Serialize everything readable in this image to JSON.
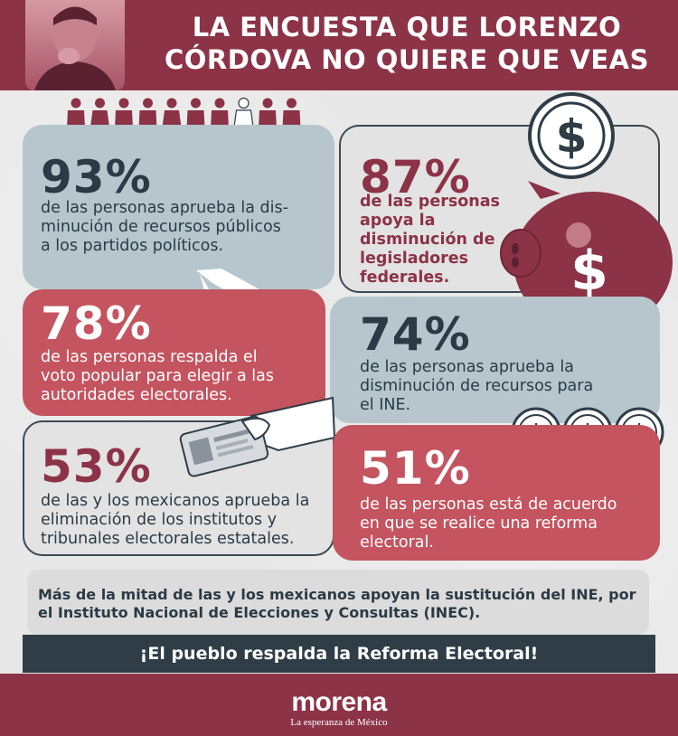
{
  "header": {
    "title": "LA ENCUESTA QUE LORENZO\nCÓRDOVA NO QUIERE QUE VEAS"
  },
  "stats": [
    {
      "percent": "93%",
      "text": "de las personas aprueba la dis-\nminución de recursos públicos\na los partidos políticos."
    },
    {
      "percent": "87%",
      "text": "de las personas\napoya la\ndisminución de\nlegisladores\nfederales."
    },
    {
      "percent": "78%",
      "text": "de las personas respalda el\nvoto popular para elegir a las\nautoridades electorales."
    },
    {
      "percent": "74%",
      "text": "de las personas aprueba la\ndisminución de recursos para\nel INE."
    },
    {
      "percent": "53%",
      "text": "de las y los mexicanos aprueba la\neliminación de los institutos y\ntribunales electorales estatales."
    },
    {
      "percent": "51%",
      "text": "de las personas está de acuerdo\nen que se realice una reforma\nelectoral."
    }
  ],
  "people_icons": {
    "total": 10,
    "highlighted_index": 7,
    "color": "#8c3347",
    "highlight_color": "#ffffff"
  },
  "summary": {
    "text": "Más de la mitad de las y los mexicanos apoyan la sustitución del INE, por\nel Instituto Nacional de Elecciones y Consultas (INEC)."
  },
  "slogan": "¡El pueblo respalda la Reforma Electoral!",
  "footer": {
    "logo": "morena",
    "tagline": "La esperanza de México"
  },
  "colors": {
    "maroon": "#8c3347",
    "dark_blue": "#2f3d47",
    "blue_gray": "#b6c6cc",
    "red": "#c4545f"
  },
  "icons": [
    "person-icon",
    "dollar-coin-icon",
    "piggy-bank-icon",
    "mexico-map-icon",
    "hand-id-card-icon"
  ]
}
